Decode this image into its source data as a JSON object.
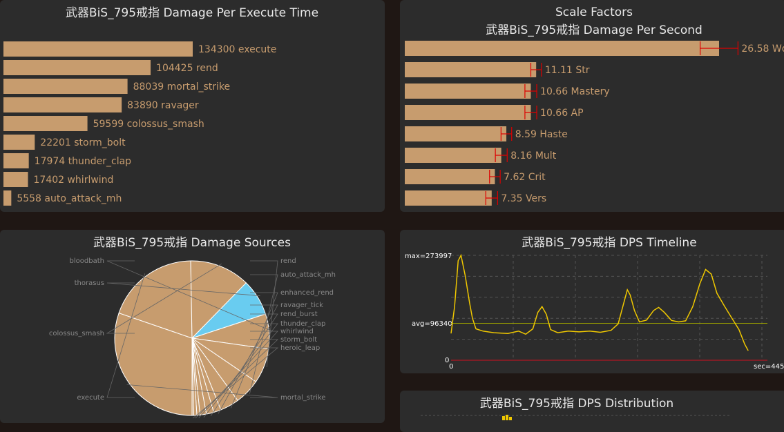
{
  "chart_data": [
    {
      "type": "bar",
      "title": "武器BiS_795戒指 Damage Per Execute Time",
      "categories": [
        "execute",
        "rend",
        "mortal_strike",
        "ravager",
        "colossus_smash",
        "storm_bolt",
        "thunder_clap",
        "whirlwind",
        "auto_attack_mh"
      ],
      "values": [
        134300,
        104425,
        88039,
        83890,
        59599,
        22201,
        17974,
        17402,
        5558
      ],
      "colors": {
        "bar": "#c79c6e",
        "text": "#c79c6e",
        "title": "#e8e8e8"
      }
    },
    {
      "type": "bar",
      "title": "Scale Factors",
      "subtitle": "武器BiS_795戒指 Damage Per Second",
      "categories": [
        "Wdps",
        "Str",
        "Mastery",
        "AP",
        "Haste",
        "Mult",
        "Crit",
        "Vers"
      ],
      "values": [
        26.58,
        11.11,
        10.66,
        10.66,
        8.59,
        8.16,
        7.62,
        7.35
      ],
      "error": [
        1.6,
        0.45,
        0.5,
        0.5,
        0.45,
        0.5,
        0.45,
        0.5
      ],
      "colors": {
        "bar": "#c79c6e",
        "error": "#dd0000",
        "text": "#c79c6e"
      }
    },
    {
      "type": "pie",
      "title": "武器BiS_795戒指 Damage Sources",
      "slices": [
        {
          "label": "mortal_strike",
          "value": 27.4,
          "color": "#c79c6e"
        },
        {
          "label": "execute",
          "value": 17.6,
          "color": "#c79c6e"
        },
        {
          "label": "colossus_smash",
          "value": 11.4,
          "color": "#c79c6e"
        },
        {
          "label": "thorasus",
          "value": 6.9,
          "color": "#69ccf0"
        },
        {
          "label": "bloodbath",
          "value": 6.6,
          "color": "#c79c6e"
        },
        {
          "label": "rend",
          "value": 6.6,
          "color": "#c79c6e"
        },
        {
          "label": "auto_attack_mh",
          "value": 4.9,
          "color": "#c79c6e"
        },
        {
          "label": "enhanced_rend",
          "value": 3.6,
          "color": "#c79c6e"
        },
        {
          "label": "ravager_tick",
          "value": 1.4,
          "color": "#c79c6e"
        },
        {
          "label": "rend_burst",
          "value": 1.4,
          "color": "#c79c6e"
        },
        {
          "label": "thunder_clap",
          "value": 1.2,
          "color": "#c79c6e"
        },
        {
          "label": "whirlwind",
          "value": 0.6,
          "color": "#c79c6e"
        },
        {
          "label": "storm_bolt",
          "value": 0.6,
          "color": "#c79c6e"
        },
        {
          "label": "heroic_leap",
          "value": 0.3,
          "color": "#c79c6e"
        }
      ]
    },
    {
      "type": "line",
      "title": "武器BiS_795戒指 DPS Timeline",
      "max_label": "max=273997",
      "avg_label": "avg=96340",
      "zero_label": "0",
      "x_start_label": "0",
      "x_end_label": "sec=445",
      "ylim": [
        0,
        273997
      ],
      "xlim": [
        0,
        445
      ],
      "avg": 96340,
      "points": [
        [
          0,
          70000
        ],
        [
          5,
          140000
        ],
        [
          10,
          260000
        ],
        [
          14,
          273997
        ],
        [
          20,
          220000
        ],
        [
          26,
          150000
        ],
        [
          30,
          110000
        ],
        [
          35,
          82000
        ],
        [
          45,
          76000
        ],
        [
          60,
          72000
        ],
        [
          80,
          70000
        ],
        [
          95,
          76000
        ],
        [
          105,
          68000
        ],
        [
          115,
          82000
        ],
        [
          122,
          125000
        ],
        [
          128,
          140000
        ],
        [
          134,
          120000
        ],
        [
          140,
          80000
        ],
        [
          150,
          72000
        ],
        [
          165,
          76000
        ],
        [
          180,
          74000
        ],
        [
          195,
          76000
        ],
        [
          210,
          73000
        ],
        [
          225,
          78000
        ],
        [
          235,
          95000
        ],
        [
          243,
          150000
        ],
        [
          248,
          184000
        ],
        [
          252,
          170000
        ],
        [
          258,
          130000
        ],
        [
          265,
          100000
        ],
        [
          275,
          105000
        ],
        [
          285,
          130000
        ],
        [
          292,
          138000
        ],
        [
          300,
          125000
        ],
        [
          310,
          104000
        ],
        [
          320,
          100000
        ],
        [
          330,
          103000
        ],
        [
          340,
          140000
        ],
        [
          350,
          200000
        ],
        [
          358,
          237000
        ],
        [
          366,
          225000
        ],
        [
          374,
          175000
        ],
        [
          385,
          140000
        ],
        [
          395,
          110000
        ],
        [
          405,
          80000
        ],
        [
          413,
          42000
        ],
        [
          418,
          25000
        ]
      ],
      "colors": {
        "line": "#f0c800",
        "avg": "#9aa000",
        "grid": "#555555",
        "axis": "#d01020"
      }
    },
    {
      "type": "bar",
      "title": "武器BiS_795戒指 DPS Distribution"
    }
  ]
}
